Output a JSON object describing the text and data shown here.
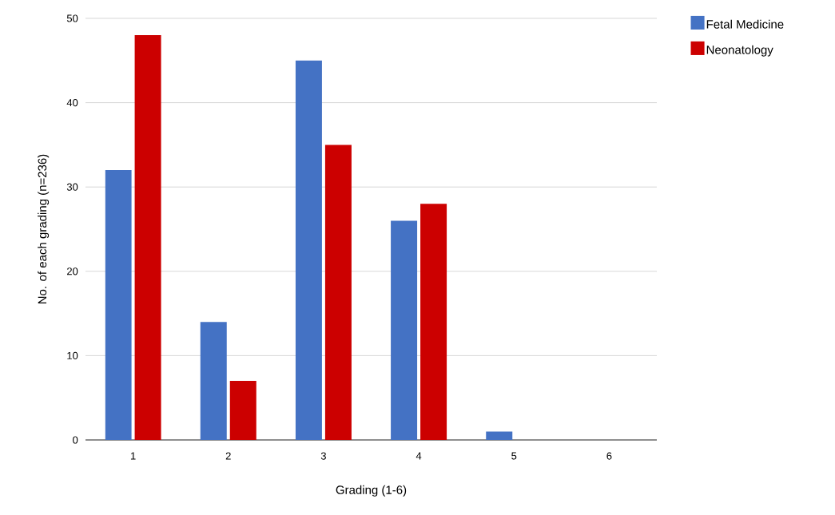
{
  "chart_data": {
    "type": "bar",
    "xlabel": "Grading (1-6)",
    "ylabel": "No. of each grading (n=236)",
    "categories": [
      "1",
      "2",
      "3",
      "4",
      "5",
      "6"
    ],
    "series": [
      {
        "name": "Fetal Medicine",
        "color": "#4472c4",
        "values": [
          32,
          14,
          45,
          26,
          1,
          0
        ]
      },
      {
        "name": "Neonatology",
        "color": "#cc0000",
        "values": [
          48,
          7,
          35,
          28,
          0,
          0
        ]
      }
    ],
    "ylim": [
      0,
      50
    ],
    "yticks": [
      0,
      10,
      20,
      30,
      40,
      50
    ],
    "grid": "y",
    "legend": "top right"
  }
}
